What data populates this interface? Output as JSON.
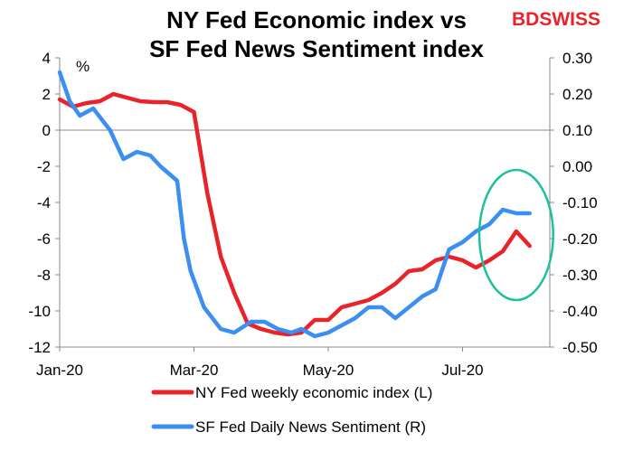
{
  "title_line1": "NY Fed Economic index vs",
  "title_line2": "SF Fed News Sentiment index",
  "logo": {
    "part1": "BD",
    "part2": "SWISS"
  },
  "chart_data": {
    "type": "line",
    "left_axis": {
      "unit_label": "%",
      "ylim": [
        -12,
        4
      ],
      "ticks": [
        "4",
        "2",
        "0",
        "-2",
        "-4",
        "-6",
        "-8",
        "-10",
        "-12"
      ]
    },
    "right_axis": {
      "ylim": [
        -0.5,
        0.3
      ],
      "ticks": [
        "0.30",
        "0.20",
        "0.10",
        "0.00",
        "-0.10",
        "-0.20",
        "-0.30",
        "-0.40",
        "-0.50"
      ]
    },
    "x_ticks": [
      {
        "label": "Jan-20",
        "pos": 0.0
      },
      {
        "label": "Mar-20",
        "pos": 2.0
      },
      {
        "label": "May-20",
        "pos": 4.0
      },
      {
        "label": "Jul-20",
        "pos": 6.0
      }
    ],
    "x_range": [
      0,
      7.3
    ],
    "series": [
      {
        "name": "NY Fed weekly economic index (L)",
        "axis": "left",
        "color": "#e8232a",
        "points": [
          [
            0.0,
            1.7
          ],
          [
            0.2,
            1.3
          ],
          [
            0.4,
            1.5
          ],
          [
            0.6,
            1.6
          ],
          [
            0.8,
            2.0
          ],
          [
            1.0,
            1.8
          ],
          [
            1.2,
            1.6
          ],
          [
            1.4,
            1.55
          ],
          [
            1.6,
            1.55
          ],
          [
            1.8,
            1.4
          ],
          [
            2.0,
            1.0
          ],
          [
            2.2,
            -3.5
          ],
          [
            2.4,
            -7.0
          ],
          [
            2.6,
            -9.0
          ],
          [
            2.8,
            -10.7
          ],
          [
            3.0,
            -11.0
          ],
          [
            3.2,
            -11.2
          ],
          [
            3.4,
            -11.3
          ],
          [
            3.6,
            -11.2
          ],
          [
            3.8,
            -10.5
          ],
          [
            4.0,
            -10.5
          ],
          [
            4.2,
            -9.8
          ],
          [
            4.4,
            -9.6
          ],
          [
            4.6,
            -9.4
          ],
          [
            4.8,
            -9.0
          ],
          [
            5.0,
            -8.5
          ],
          [
            5.2,
            -7.8
          ],
          [
            5.4,
            -7.7
          ],
          [
            5.6,
            -7.2
          ],
          [
            5.8,
            -7.0
          ],
          [
            6.0,
            -7.2
          ],
          [
            6.2,
            -7.6
          ],
          [
            6.4,
            -7.2
          ],
          [
            6.6,
            -6.7
          ],
          [
            6.8,
            -5.6
          ],
          [
            7.0,
            -6.4
          ]
        ]
      },
      {
        "name": "SF Fed Daily News Sentiment (R)",
        "axis": "right",
        "color": "#3b8ff0",
        "points": [
          [
            0.0,
            0.26
          ],
          [
            0.15,
            0.18
          ],
          [
            0.3,
            0.14
          ],
          [
            0.5,
            0.16
          ],
          [
            0.75,
            0.1
          ],
          [
            0.95,
            0.02
          ],
          [
            1.15,
            0.04
          ],
          [
            1.35,
            0.03
          ],
          [
            1.5,
            0.0
          ],
          [
            1.75,
            -0.04
          ],
          [
            1.85,
            -0.2
          ],
          [
            1.95,
            -0.29
          ],
          [
            2.15,
            -0.39
          ],
          [
            2.4,
            -0.45
          ],
          [
            2.6,
            -0.46
          ],
          [
            2.85,
            -0.43
          ],
          [
            3.05,
            -0.43
          ],
          [
            3.25,
            -0.45
          ],
          [
            3.45,
            -0.46
          ],
          [
            3.6,
            -0.45
          ],
          [
            3.8,
            -0.47
          ],
          [
            4.0,
            -0.46
          ],
          [
            4.2,
            -0.44
          ],
          [
            4.4,
            -0.42
          ],
          [
            4.6,
            -0.39
          ],
          [
            4.8,
            -0.39
          ],
          [
            5.0,
            -0.42
          ],
          [
            5.2,
            -0.39
          ],
          [
            5.4,
            -0.36
          ],
          [
            5.6,
            -0.34
          ],
          [
            5.8,
            -0.23
          ],
          [
            6.0,
            -0.21
          ],
          [
            6.2,
            -0.18
          ],
          [
            6.4,
            -0.16
          ],
          [
            6.6,
            -0.12
          ],
          [
            6.8,
            -0.13
          ],
          [
            7.0,
            -0.13
          ]
        ]
      }
    ],
    "annotation": {
      "type": "ellipse",
      "color": "#1dbf9c",
      "x_center": 6.8,
      "y_center_left": -5.8,
      "x_radius": 0.55,
      "y_radius_left": 3.6
    }
  }
}
